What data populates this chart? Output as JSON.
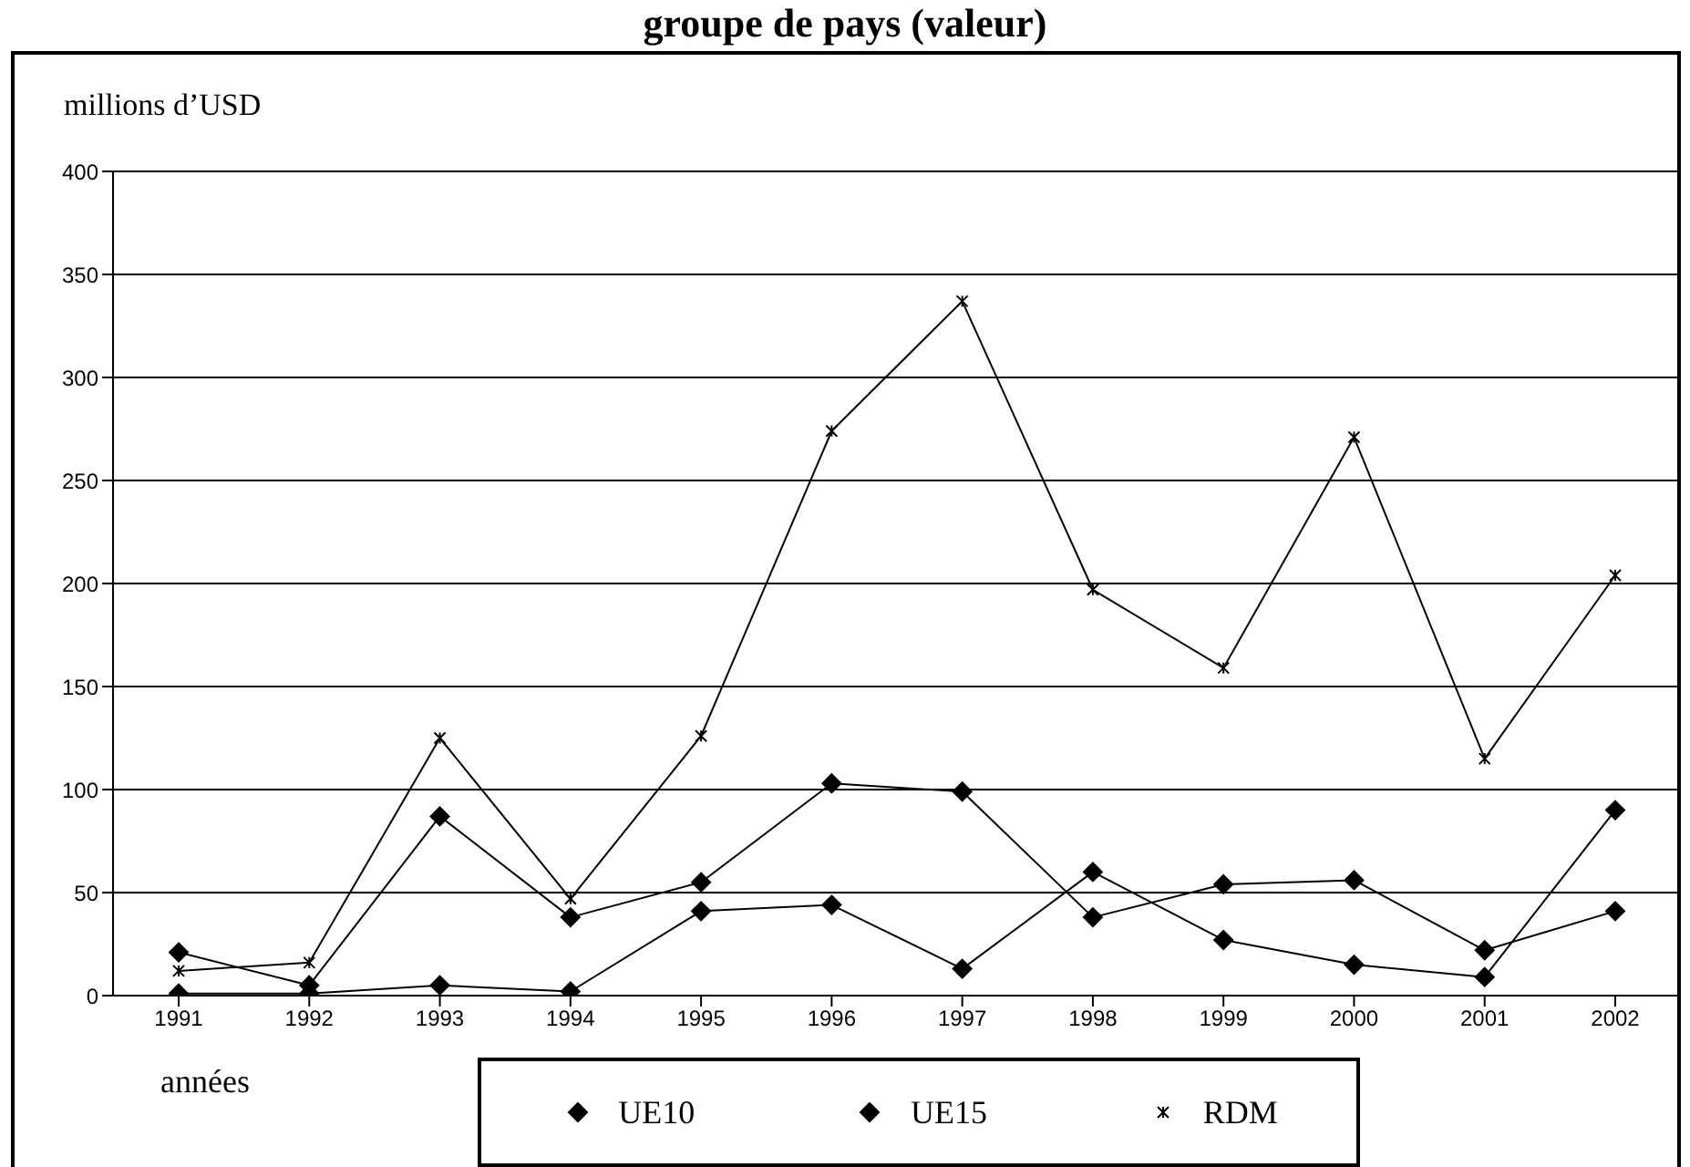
{
  "chart_data": {
    "type": "line",
    "title": "groupe de pays (valeur)",
    "ylabel": "millions d’USD",
    "xlabel": "années",
    "categories": [
      "1991",
      "1992",
      "1993",
      "1994",
      "1995",
      "1996",
      "1997",
      "1998",
      "1999",
      "2000",
      "2001",
      "2002"
    ],
    "series": [
      {
        "name": "UE10",
        "color": "#000000",
        "marker": "diamond",
        "values": [
          1,
          1,
          5,
          2,
          41,
          44,
          13,
          60,
          27,
          15,
          9,
          90
        ]
      },
      {
        "name": "UE15",
        "color": "#000000",
        "marker": "diamond",
        "values": [
          21,
          5,
          87,
          38,
          55,
          103,
          99,
          38,
          54,
          56,
          22,
          41
        ]
      },
      {
        "name": "RDM",
        "color": "#000000",
        "marker": "cross",
        "values": [
          12,
          16,
          125,
          47,
          126,
          274,
          337,
          197,
          159,
          271,
          115,
          204
        ]
      }
    ],
    "ylim": [
      0,
      400
    ],
    "yticks": [
      0,
      50,
      100,
      150,
      200,
      250,
      300,
      350,
      400
    ],
    "grid": "y",
    "legend": "bottom",
    "line_style": "solid"
  }
}
